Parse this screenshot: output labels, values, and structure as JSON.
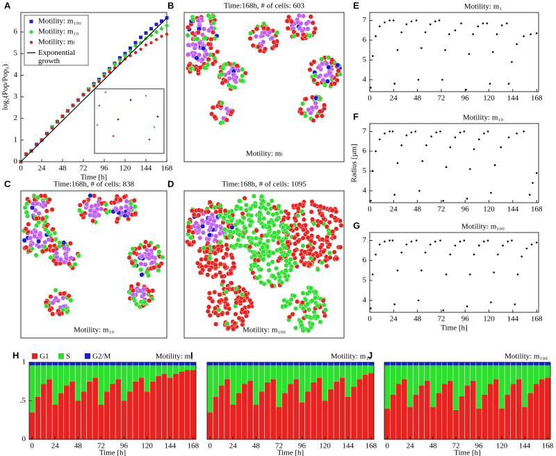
{
  "chart_data": [
    {
      "type": "line",
      "panel": "A",
      "xlabel": "Time [h]",
      "ylabel": "log₂(Pop/Pop₀)",
      "xlim": [
        0,
        168
      ],
      "ylim": [
        0,
        6.9
      ],
      "xticks": [
        0,
        24,
        48,
        72,
        96,
        120,
        144,
        168
      ],
      "yticks": [
        0,
        1,
        2,
        3,
        4,
        5,
        6
      ],
      "legend": "upper left",
      "x": [
        0,
        6,
        12,
        18,
        24,
        30,
        36,
        42,
        48,
        54,
        60,
        66,
        72,
        78,
        84,
        90,
        96,
        102,
        108,
        114,
        120,
        126,
        132,
        138,
        144,
        150,
        156,
        162,
        168
      ],
      "series": [
        {
          "name": "Motility: m₁₀₀",
          "color": "#1f1fd6",
          "marker": "square",
          "values": [
            0,
            0.35,
            0.5,
            0.8,
            1.0,
            1.3,
            1.6,
            1.85,
            2.1,
            2.35,
            2.6,
            2.85,
            3.1,
            3.35,
            3.6,
            3.8,
            4.05,
            4.3,
            4.55,
            4.8,
            5.0,
            5.25,
            5.5,
            5.75,
            5.95,
            6.15,
            6.35,
            6.5,
            6.65
          ]
        },
        {
          "name": "Motility: m₁₀",
          "color": "#2ed82e",
          "marker": "diamond",
          "values": [
            0,
            0.35,
            0.5,
            0.8,
            1.0,
            1.3,
            1.6,
            1.85,
            2.1,
            2.35,
            2.6,
            2.85,
            3.1,
            3.35,
            3.55,
            3.75,
            4.0,
            4.25,
            4.5,
            4.7,
            4.9,
            5.1,
            5.35,
            5.5,
            5.7,
            5.85,
            6.0,
            6.15,
            6.3
          ]
        },
        {
          "name": "Motility: mₗ",
          "color": "#e02020",
          "marker": "circle",
          "values": [
            0,
            0.35,
            0.5,
            0.8,
            1.0,
            1.3,
            1.55,
            1.85,
            2.1,
            2.35,
            2.6,
            2.85,
            3.1,
            3.3,
            3.5,
            3.7,
            3.95,
            4.15,
            4.35,
            4.55,
            4.75,
            4.9,
            5.05,
            5.2,
            5.4,
            5.5,
            5.65,
            5.8,
            5.9
          ]
        },
        {
          "name": "Exponential growth",
          "color": "#000000",
          "marker": "line",
          "x": [
            0,
            168
          ],
          "values": [
            0,
            6.65
          ]
        }
      ]
    },
    {
      "type": "cells",
      "panel": "B",
      "title": "Time:168h, # of cells: 603",
      "label": "Motility: mₗ"
    },
    {
      "type": "cells",
      "panel": "C",
      "title": "Time:168h, # of cells: 838",
      "label": "Motility: m₁₀"
    },
    {
      "type": "cells",
      "panel": "D",
      "title": "Time:168h, # of cells: 1095",
      "label": "Motility: m₁₀₀"
    },
    {
      "type": "scatter",
      "panel": "E",
      "title": "Motility: m₁",
      "color": "#000000",
      "xlim": [
        0,
        170
      ],
      "ylim": [
        3.4,
        7.4
      ],
      "xticks": [
        0,
        24,
        48,
        72,
        96,
        120,
        144,
        168
      ],
      "yticks": [
        4,
        5,
        6,
        7
      ],
      "x": [
        1,
        3,
        6,
        10,
        15,
        20,
        24,
        25,
        28,
        32,
        37,
        42,
        47,
        49,
        52,
        56,
        61,
        66,
        70,
        73,
        76,
        80,
        86,
        92,
        97,
        100,
        104,
        109,
        114,
        118,
        121,
        124,
        128,
        133,
        138,
        140,
        143,
        148,
        155,
        162,
        168
      ],
      "values": [
        3.6,
        5.2,
        6.2,
        6.7,
        6.9,
        7.0,
        7.0,
        3.8,
        5.5,
        6.4,
        6.8,
        6.95,
        7.0,
        4.0,
        5.6,
        6.4,
        6.8,
        6.95,
        7.0,
        4.0,
        5.5,
        6.3,
        6.5,
        6.85,
        3.5,
        5.3,
        6.3,
        6.7,
        6.85,
        6.85,
        3.8,
        5.4,
        6.3,
        6.75,
        6.85,
        3.8,
        4.9,
        5.8,
        6.2,
        6.3,
        6.35
      ]
    },
    {
      "type": "scatter",
      "panel": "F",
      "title": "Motility: m₁₀",
      "ylabel": "Radius [µm]",
      "color": "#000000",
      "xlim": [
        0,
        170
      ],
      "ylim": [
        3.4,
        7.4
      ],
      "xticks": [
        0,
        24,
        48,
        72,
        96,
        120,
        144,
        168
      ],
      "yticks": [
        4,
        5,
        6,
        7
      ],
      "x": [
        1,
        3,
        6,
        10,
        15,
        20,
        23,
        25,
        28,
        32,
        37,
        42,
        46,
        50,
        53,
        57,
        62,
        67,
        71,
        74,
        77,
        81,
        86,
        91,
        95,
        98,
        101,
        105,
        110,
        115,
        119,
        122,
        126,
        132,
        140,
        148,
        155,
        161,
        164,
        168
      ],
      "values": [
        3.5,
        5.0,
        6.0,
        6.6,
        6.9,
        7.0,
        7.0,
        3.8,
        5.4,
        6.3,
        6.8,
        6.95,
        7.0,
        4.0,
        5.5,
        6.3,
        6.75,
        6.95,
        7.0,
        3.5,
        5.2,
        6.2,
        6.7,
        6.95,
        7.0,
        3.6,
        5.1,
        6.1,
        6.6,
        6.9,
        7.0,
        3.9,
        5.3,
        6.2,
        6.7,
        6.9,
        7.0,
        3.8,
        4.4,
        4.9
      ]
    },
    {
      "type": "scatter",
      "panel": "G",
      "title": "Motility: m₁₀₀",
      "xlabel": "Time [h]",
      "color": "#000000",
      "xlim": [
        0,
        170
      ],
      "ylim": [
        3.4,
        7.4
      ],
      "xticks": [
        0,
        24,
        48,
        72,
        96,
        120,
        144,
        168
      ],
      "yticks": [
        4,
        5,
        6,
        7
      ],
      "x": [
        1,
        3,
        6,
        10,
        15,
        20,
        23,
        25,
        28,
        32,
        37,
        42,
        47,
        49,
        52,
        56,
        61,
        66,
        71,
        74,
        77,
        81,
        86,
        91,
        95,
        98,
        101,
        105,
        110,
        115,
        119,
        122,
        125,
        129,
        134,
        139,
        143,
        146,
        149,
        153,
        158,
        163,
        168
      ],
      "values": [
        3.6,
        5.3,
        6.3,
        6.8,
        6.95,
        7.0,
        7.0,
        3.8,
        5.5,
        6.4,
        6.8,
        6.95,
        7.0,
        4.0,
        5.5,
        6.4,
        6.8,
        6.95,
        7.0,
        3.5,
        5.3,
        6.3,
        6.75,
        6.95,
        7.0,
        3.7,
        5.3,
        6.3,
        6.75,
        6.95,
        7.0,
        3.9,
        5.4,
        6.3,
        6.75,
        6.95,
        7.0,
        3.8,
        5.3,
        6.2,
        6.6,
        6.8,
        6.9
      ]
    },
    {
      "type": "stacked_bar",
      "panel": "H",
      "title": "Motility: m₁",
      "xlabel": "Time [h]",
      "legend": "top",
      "xlim": [
        -3,
        171
      ],
      "ylim": [
        0,
        1
      ],
      "xticks": [
        0,
        24,
        48,
        72,
        96,
        120,
        144,
        168
      ],
      "yticks": [
        0,
        {
          "value": 0.5,
          "label": ".5"
        },
        1
      ],
      "x": [
        0,
        6,
        12,
        18,
        24,
        30,
        36,
        42,
        48,
        54,
        60,
        66,
        72,
        78,
        84,
        90,
        96,
        102,
        108,
        114,
        120,
        126,
        132,
        138,
        144,
        150,
        156,
        162,
        168
      ],
      "series": [
        {
          "name": "G1",
          "color": "#e8231f",
          "values": [
            0.35,
            0.55,
            0.72,
            0.78,
            0.45,
            0.6,
            0.7,
            0.75,
            0.5,
            0.62,
            0.75,
            0.8,
            0.45,
            0.62,
            0.72,
            0.78,
            0.5,
            0.62,
            0.75,
            0.8,
            0.62,
            0.75,
            0.82,
            0.85,
            0.8,
            0.85,
            0.88,
            0.9,
            0.9
          ]
        },
        {
          "name": "S",
          "color": "#2de02d",
          "values": [
            0.61,
            0.41,
            0.24,
            0.18,
            0.51,
            0.36,
            0.26,
            0.21,
            0.46,
            0.34,
            0.21,
            0.16,
            0.51,
            0.34,
            0.24,
            0.18,
            0.46,
            0.34,
            0.21,
            0.16,
            0.34,
            0.21,
            0.14,
            0.11,
            0.16,
            0.11,
            0.08,
            0.06,
            0.06
          ]
        },
        {
          "name": "G2/M",
          "color": "#1a1ae0",
          "values": [
            0.04,
            0.04,
            0.04,
            0.04,
            0.04,
            0.04,
            0.04,
            0.04,
            0.04,
            0.04,
            0.04,
            0.04,
            0.04,
            0.04,
            0.04,
            0.04,
            0.04,
            0.04,
            0.04,
            0.04,
            0.04,
            0.04,
            0.04,
            0.04,
            0.04,
            0.04,
            0.04,
            0.04,
            0.04
          ]
        }
      ]
    },
    {
      "type": "stacked_bar",
      "panel": "I",
      "title": "Motility: m₁₀",
      "xlabel": "Time [h]",
      "xlim": [
        -3,
        171
      ],
      "ylim": [
        0,
        1
      ],
      "xticks": [
        0,
        24,
        48,
        72,
        96,
        120,
        144,
        168
      ],
      "x": [
        0,
        6,
        12,
        18,
        24,
        30,
        36,
        42,
        48,
        54,
        60,
        66,
        72,
        78,
        84,
        90,
        96,
        102,
        108,
        114,
        120,
        126,
        132,
        138,
        144,
        150,
        156,
        162,
        168
      ],
      "series": [
        {
          "color": "#e8231f",
          "values": [
            0.35,
            0.55,
            0.7,
            0.78,
            0.45,
            0.6,
            0.72,
            0.76,
            0.45,
            0.62,
            0.74,
            0.78,
            0.42,
            0.6,
            0.72,
            0.78,
            0.48,
            0.62,
            0.74,
            0.8,
            0.5,
            0.65,
            0.75,
            0.8,
            0.55,
            0.68,
            0.78,
            0.84,
            0.86
          ]
        },
        {
          "color": "#2de02d",
          "values": [
            0.61,
            0.41,
            0.26,
            0.18,
            0.51,
            0.36,
            0.24,
            0.2,
            0.51,
            0.34,
            0.22,
            0.18,
            0.54,
            0.36,
            0.24,
            0.18,
            0.48,
            0.34,
            0.22,
            0.16,
            0.46,
            0.31,
            0.21,
            0.16,
            0.41,
            0.28,
            0.18,
            0.12,
            0.1
          ]
        },
        {
          "color": "#1a1ae0",
          "values": [
            0.04,
            0.04,
            0.04,
            0.04,
            0.04,
            0.04,
            0.04,
            0.04,
            0.04,
            0.04,
            0.04,
            0.04,
            0.04,
            0.04,
            0.04,
            0.04,
            0.04,
            0.04,
            0.04,
            0.04,
            0.04,
            0.04,
            0.04,
            0.04,
            0.04,
            0.04,
            0.04,
            0.04,
            0.04
          ]
        }
      ]
    },
    {
      "type": "stacked_bar",
      "panel": "J",
      "title": "Motility: m₁₀₀",
      "xlabel": "Time [h]",
      "xlim": [
        -3,
        171
      ],
      "ylim": [
        0,
        1
      ],
      "xticks": [
        0,
        24,
        48,
        72,
        96,
        120,
        144,
        168
      ],
      "x": [
        0,
        6,
        12,
        18,
        24,
        30,
        36,
        42,
        48,
        54,
        60,
        66,
        72,
        78,
        84,
        90,
        96,
        102,
        108,
        114,
        120,
        126,
        132,
        138,
        144,
        150,
        156,
        162,
        168
      ],
      "series": [
        {
          "color": "#e8231f",
          "values": [
            0.4,
            0.58,
            0.72,
            0.78,
            0.42,
            0.58,
            0.7,
            0.76,
            0.42,
            0.6,
            0.72,
            0.76,
            0.38,
            0.56,
            0.7,
            0.76,
            0.4,
            0.58,
            0.72,
            0.78,
            0.4,
            0.58,
            0.72,
            0.78,
            0.42,
            0.6,
            0.72,
            0.78,
            0.8
          ]
        },
        {
          "color": "#2de02d",
          "values": [
            0.56,
            0.38,
            0.24,
            0.18,
            0.54,
            0.38,
            0.26,
            0.2,
            0.54,
            0.36,
            0.24,
            0.2,
            0.58,
            0.4,
            0.26,
            0.2,
            0.56,
            0.38,
            0.24,
            0.18,
            0.56,
            0.38,
            0.24,
            0.18,
            0.54,
            0.36,
            0.24,
            0.18,
            0.16
          ]
        },
        {
          "color": "#1a1ae0",
          "values": [
            0.04,
            0.04,
            0.04,
            0.04,
            0.04,
            0.04,
            0.04,
            0.04,
            0.04,
            0.04,
            0.04,
            0.04,
            0.04,
            0.04,
            0.04,
            0.04,
            0.04,
            0.04,
            0.04,
            0.04,
            0.04,
            0.04,
            0.04,
            0.04,
            0.04,
            0.04,
            0.04,
            0.04,
            0.04
          ]
        }
      ]
    }
  ]
}
